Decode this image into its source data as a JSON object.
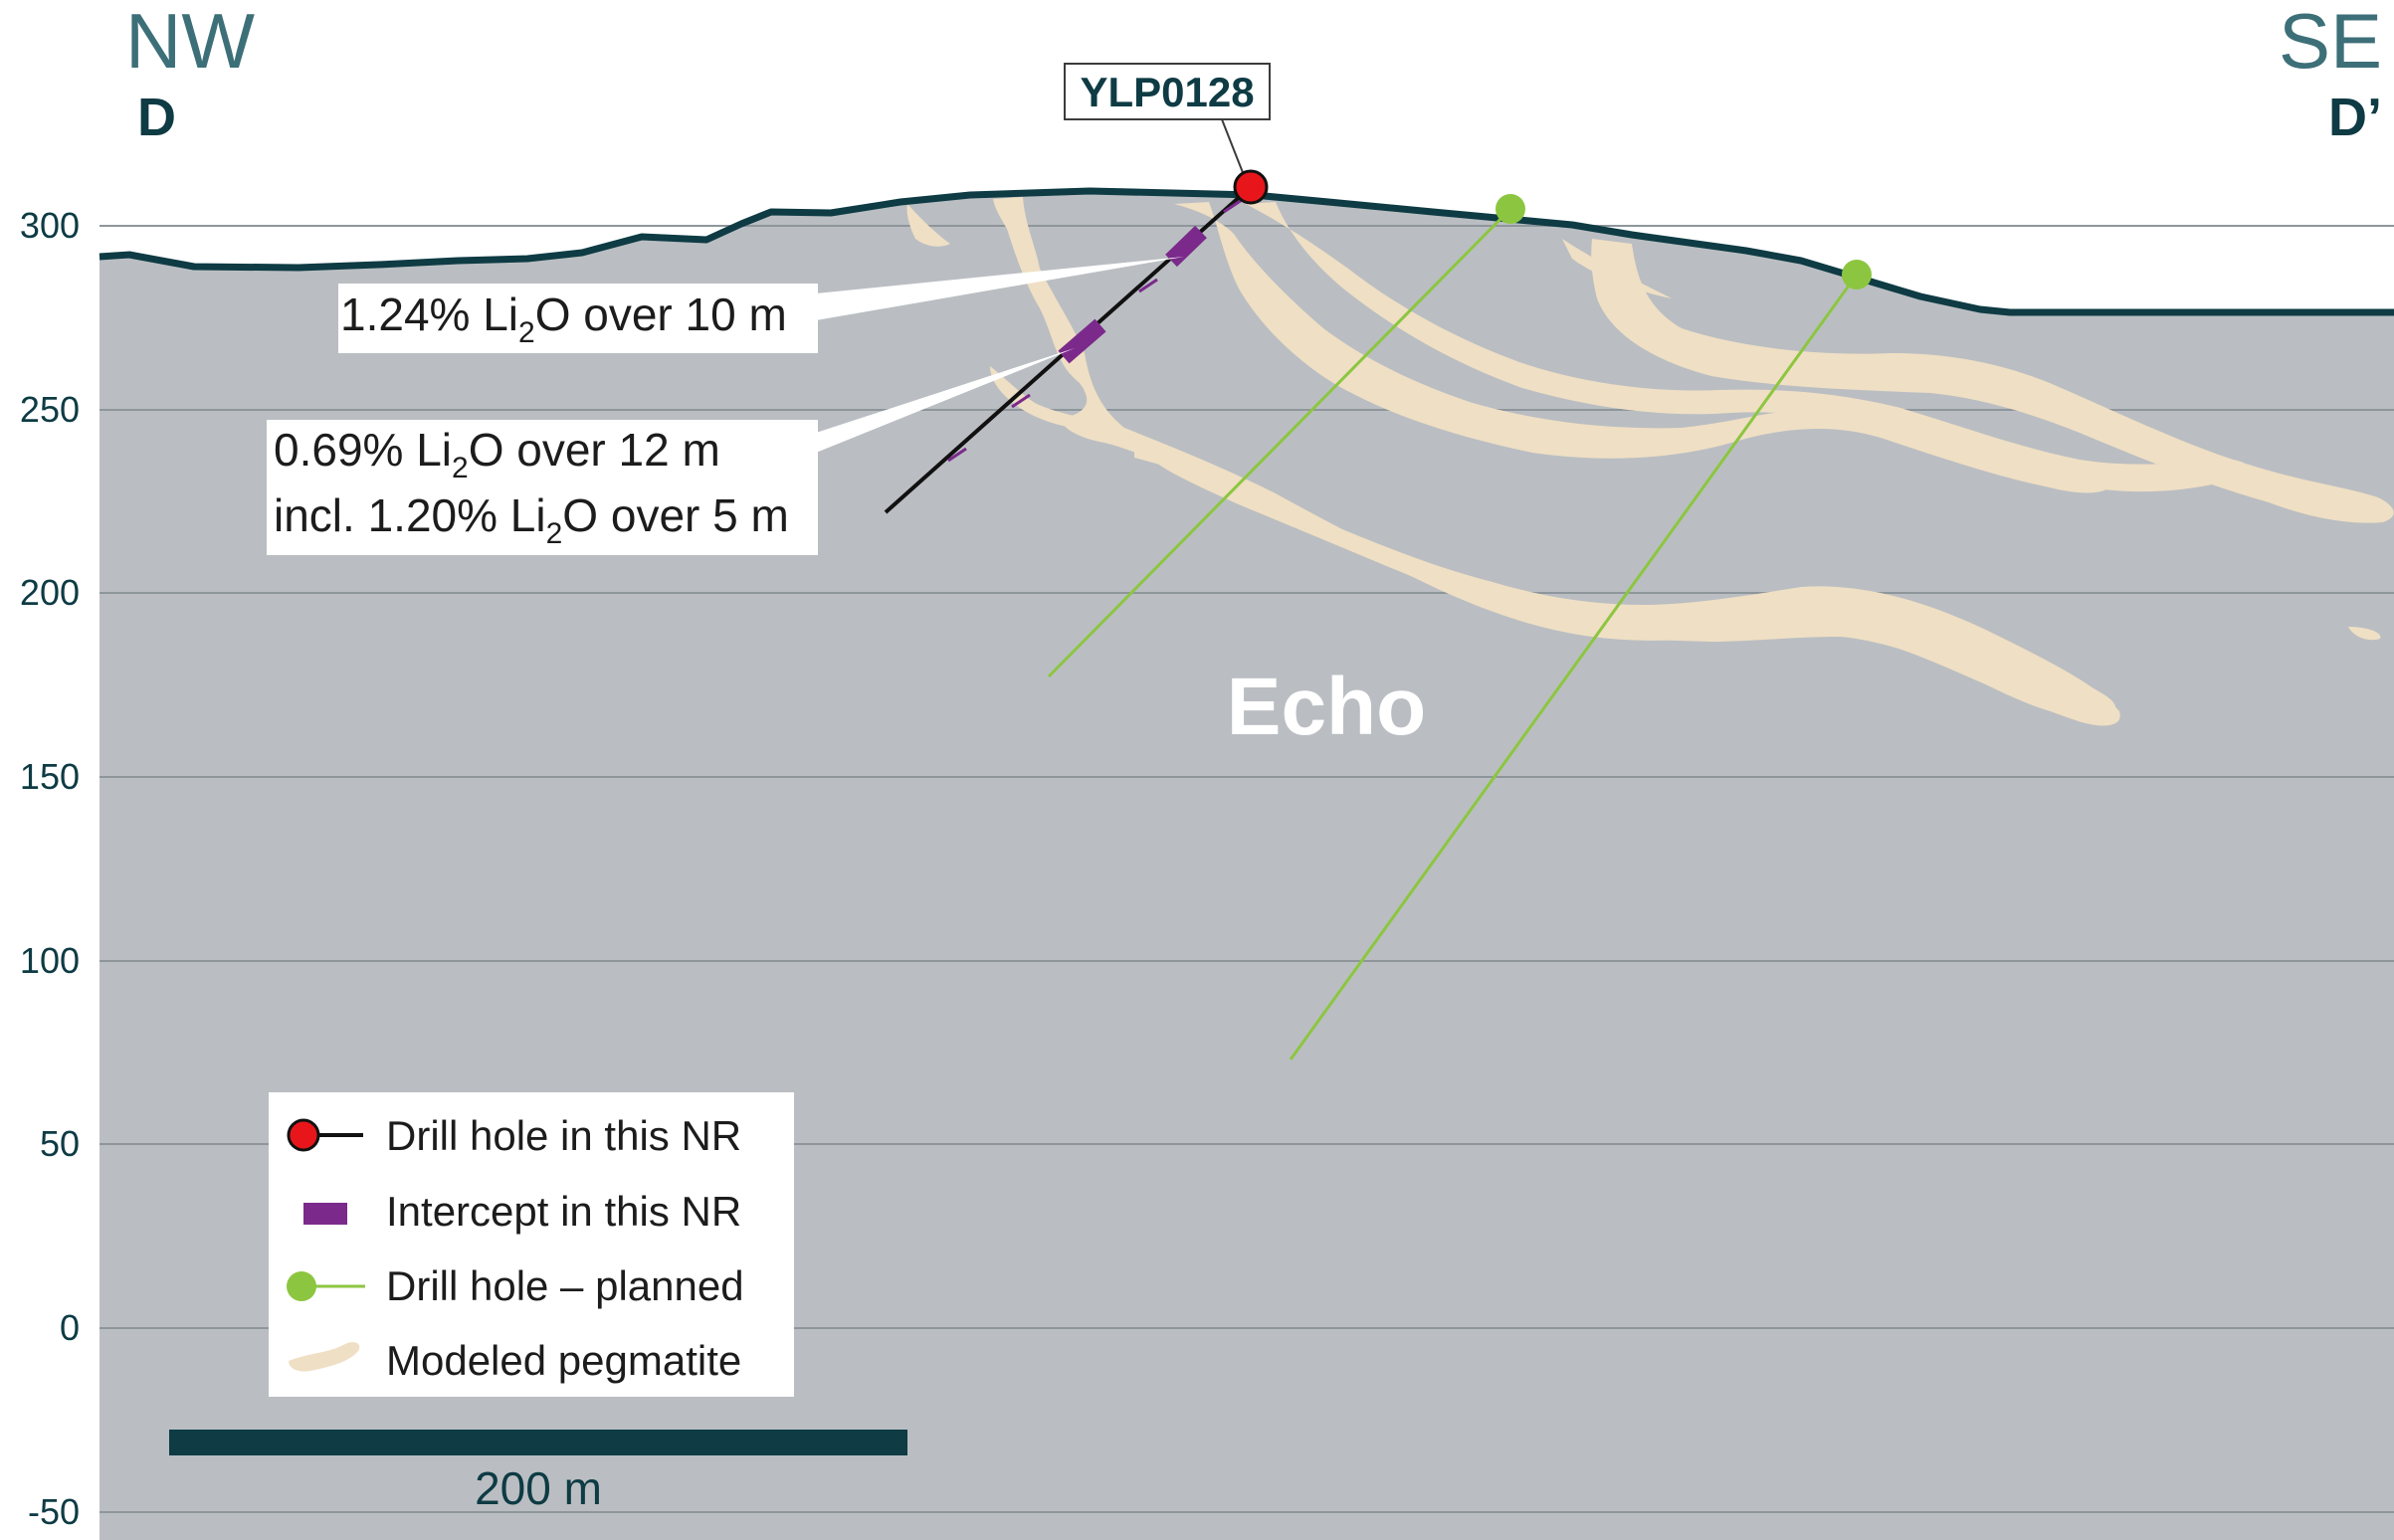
{
  "section": {
    "left_direction": "NW",
    "left_label": "D",
    "right_direction": "SE",
    "right_label": "D’",
    "area_label": "Echo"
  },
  "elevation_axis": {
    "ticks": [
      "300",
      "250",
      "200",
      "150",
      "100",
      "50",
      "0",
      "-50"
    ]
  },
  "drill_hole": {
    "name": "YLP0128"
  },
  "intercepts": [
    {
      "pre": "1.24% Li",
      "sub": "2",
      "post": "O over 10 m"
    },
    {
      "pre": "0.69% Li",
      "sub": "2",
      "post": "O over 12 m"
    },
    {
      "pre": "incl. 1.20% Li",
      "sub": "2",
      "post": "O over 5 m"
    }
  ],
  "legend": {
    "items": [
      "Drill hole in this NR",
      "Intercept in this NR",
      "Drill hole – planned",
      "Modeled pegmatite"
    ]
  },
  "scale_bar": {
    "label": "200 m"
  },
  "colors": {
    "rock": "#babec2",
    "pegmatite": "#efdfc4",
    "surface": "#0e3b44",
    "drill_hole_collar": "#e8161b",
    "intercept": "#7b2a8b",
    "planned": "#8cc640",
    "grid": "#8e969b"
  }
}
